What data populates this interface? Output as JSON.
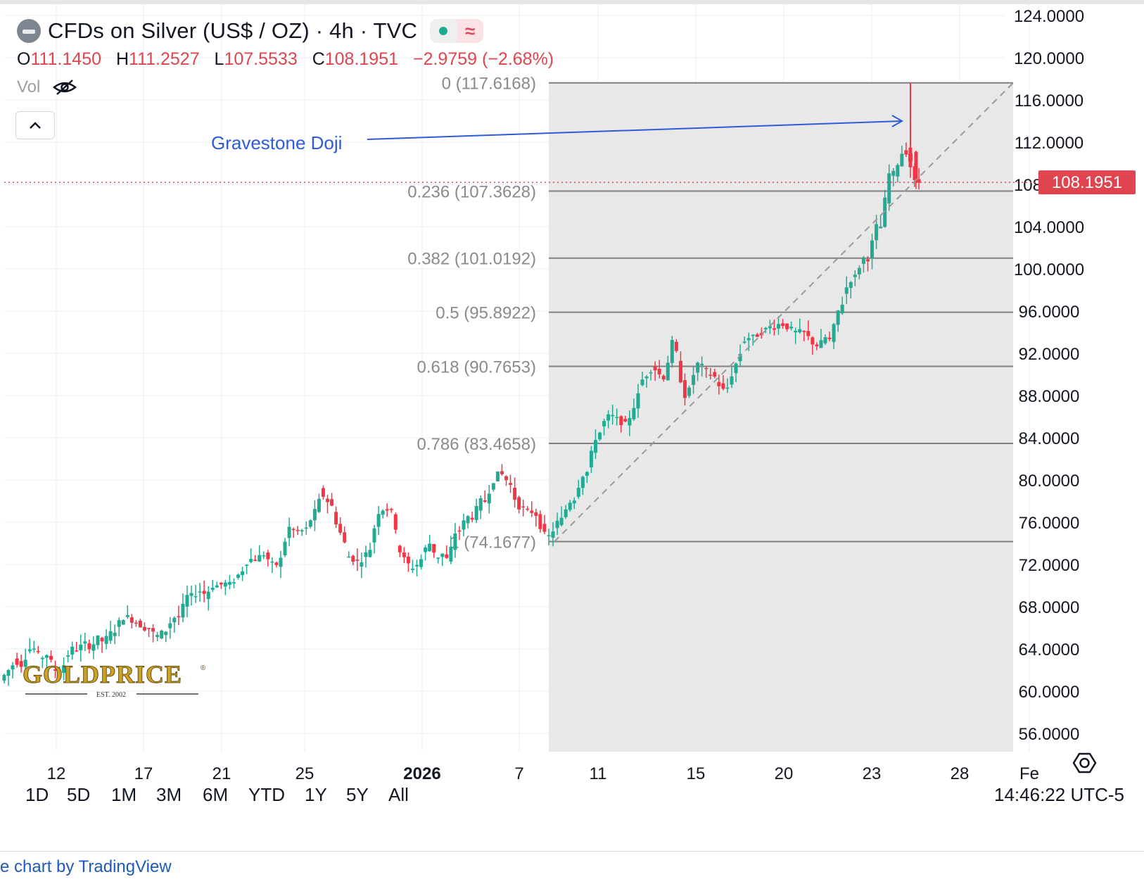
{
  "header": {
    "title": "CFDs on Silver (US$ / OZ) · 4h · TVC",
    "status_symbol": "≈",
    "ohlc": {
      "o_label": "O",
      "o_value": "111.1450",
      "h_label": "H",
      "h_value": "111.2527",
      "l_label": "L",
      "l_value": "107.5533",
      "c_label": "C",
      "c_value": "108.1951",
      "change": "−2.9759 (−2.68%)"
    },
    "vol_label": "Vol",
    "icons": {
      "symbol": "silver-symbol-icon",
      "live": "live-status-dot-icon",
      "hide": "eye-off-icon",
      "collapse": "chevron-up-icon",
      "settings": "gear-icon"
    }
  },
  "logo": {
    "text": "GOLDPRICE",
    "registered": "®",
    "subtext": "EST. 2002"
  },
  "annotation": {
    "text": "Gravestone Doji",
    "color": "#2f5bd8"
  },
  "toolbar": {
    "ranges": [
      "1D",
      "5D",
      "1M",
      "3M",
      "6M",
      "YTD",
      "1Y",
      "5Y",
      "All"
    ],
    "clock": "14:46:22 UTC-5"
  },
  "attribution": {
    "prefix": "e chart by ",
    "brand": "TradingView"
  },
  "colors": {
    "up": "#22ab94",
    "down": "#f23645",
    "fib_line": "#808080",
    "fib_zone": "#e8e8e8",
    "price_tag": "#e0454f",
    "annotation": "#2f5bd8"
  },
  "chart_data": {
    "type": "candlestick",
    "ylim": [
      53.0,
      125.5
    ],
    "y_ticks": [
      "124.0000",
      "120.0000",
      "116.0000",
      "112.0000",
      "108.0000",
      "104.0000",
      "100.0000",
      "96.0000",
      "92.0000",
      "88.0000",
      "84.0000",
      "80.0000",
      "76.0000",
      "72.0000",
      "68.0000",
      "64.0000",
      "60.0000",
      "56.0000"
    ],
    "y_tick_values": [
      124,
      120,
      116,
      112,
      108,
      104,
      100,
      96,
      92,
      88,
      84,
      80,
      76,
      72,
      68,
      64,
      60,
      56
    ],
    "x_ticks": [
      {
        "label": "12",
        "bold": false
      },
      {
        "label": "17",
        "bold": false
      },
      {
        "label": "21",
        "bold": false
      },
      {
        "label": "25",
        "bold": false
      },
      {
        "label": "2026",
        "bold": true
      },
      {
        "label": "7",
        "bold": false
      },
      {
        "label": "11",
        "bold": false
      },
      {
        "label": "15",
        "bold": false
      },
      {
        "label": "20",
        "bold": false
      },
      {
        "label": "23",
        "bold": false
      },
      {
        "label": "28",
        "bold": false
      },
      {
        "label": "Fe",
        "bold": false
      }
    ],
    "last_price": {
      "label": "108.1951",
      "value": 108.1951
    },
    "fib_levels": [
      {
        "label": "0 (117.6168)",
        "value": 117.6168
      },
      {
        "label": "0.236 (107.3628)",
        "value": 107.3628
      },
      {
        "label": "0.382 (101.0192)",
        "value": 101.0192
      },
      {
        "label": "0.5 (95.8922)",
        "value": 95.8922
      },
      {
        "label": "0.618 (90.7653)",
        "value": 90.7653
      },
      {
        "label": "0.786 (83.4658)",
        "value": 83.4658
      },
      {
        "label": "1 (74.1677)",
        "value": 74.1677
      }
    ],
    "path_points": [
      [
        61,
        62
      ],
      [
        63,
        62.5
      ],
      [
        64,
        64
      ],
      [
        63,
        63.5
      ],
      [
        62,
        62
      ],
      [
        63,
        64
      ],
      [
        64,
        64.5
      ],
      [
        64,
        65
      ],
      [
        64.5,
        65.5
      ],
      [
        66,
        67
      ],
      [
        67,
        66.5
      ],
      [
        66,
        66
      ],
      [
        65,
        65.5
      ],
      [
        66,
        67
      ],
      [
        67,
        69
      ],
      [
        69,
        69.5
      ],
      [
        69,
        70
      ],
      [
        70,
        70.2
      ],
      [
        70,
        71
      ],
      [
        72,
        72.5
      ],
      [
        72.5,
        73
      ],
      [
        72,
        72
      ],
      [
        73,
        75.5
      ],
      [
        75,
        75.2
      ],
      [
        75.5,
        77
      ],
      [
        79,
        78
      ],
      [
        77,
        75
      ],
      [
        73,
        72.5
      ],
      [
        72,
        73
      ],
      [
        74,
        77
      ],
      [
        77.5,
        77
      ],
      [
        74,
        72.5
      ],
      [
        71.5,
        72
      ],
      [
        73,
        74
      ],
      [
        72.5,
        73
      ],
      [
        72,
        75
      ],
      [
        75.5,
        76.5
      ],
      [
        76.5,
        78
      ],
      [
        78,
        80
      ],
      [
        81,
        80
      ],
      [
        79,
        77.5
      ],
      [
        77,
        77
      ],
      [
        76.5,
        74.8
      ],
      [
        74.5,
        76
      ],
      [
        76.5,
        78
      ],
      [
        78.5,
        80.5
      ],
      [
        81,
        84
      ],
      [
        85,
        86
      ],
      [
        86,
        85.5
      ],
      [
        85,
        87
      ],
      [
        89,
        90
      ],
      [
        91,
        90
      ],
      [
        89.5,
        93
      ],
      [
        91,
        88
      ],
      [
        89,
        91
      ],
      [
        90.5,
        90
      ],
      [
        89.5,
        88.5
      ],
      [
        89,
        91
      ],
      [
        93,
        93.5
      ],
      [
        93.5,
        94
      ],
      [
        94.5,
        94.5
      ],
      [
        95,
        94.5
      ],
      [
        94,
        94
      ],
      [
        94,
        93
      ],
      [
        92.5,
        93.5
      ],
      [
        93,
        96
      ],
      [
        97.5,
        99
      ],
      [
        99.5,
        101
      ],
      [
        101,
        104
      ],
      [
        104,
        109
      ],
      [
        109,
        111
      ],
      [
        111.2,
        108.2
      ]
    ]
  }
}
